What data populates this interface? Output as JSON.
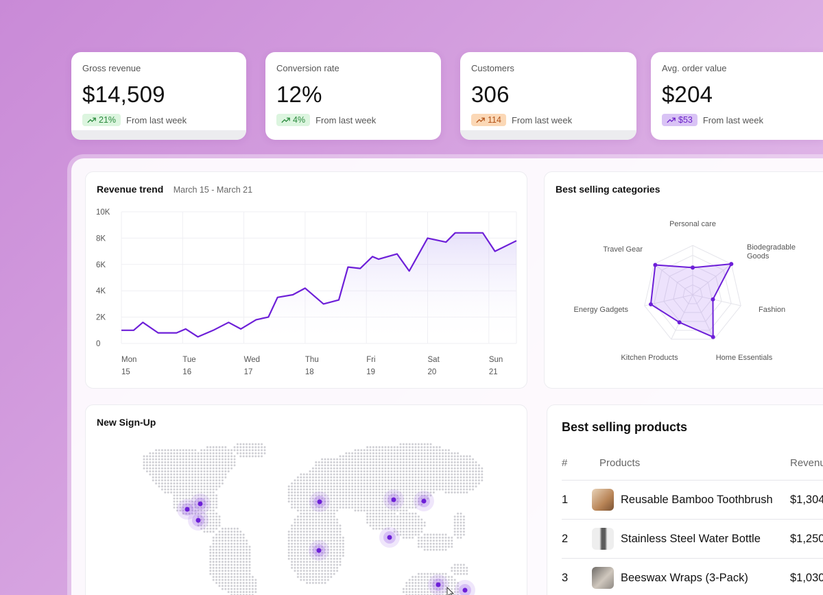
{
  "kpis": [
    {
      "label": "Gross revenue",
      "value": "$14,509",
      "badge": "21%",
      "badge_color": "green",
      "note": "From last week"
    },
    {
      "label": "Conversion rate",
      "value": "12%",
      "badge": "4%",
      "badge_color": "green",
      "note": "From last week"
    },
    {
      "label": "Customers",
      "value": "306",
      "badge": "114",
      "badge_color": "orange",
      "note": "From last week"
    },
    {
      "label": "Avg. order value",
      "value": "$204",
      "badge": "$53",
      "badge_color": "purple",
      "note": "From last week"
    }
  ],
  "revenue": {
    "title": "Revenue trend",
    "range": "March 15 - March 21"
  },
  "categories": {
    "title": "Best selling categories"
  },
  "signup": {
    "title": "New Sign-Up"
  },
  "products": {
    "title": "Best selling products",
    "headers": [
      "#",
      "Products",
      "Revenue"
    ],
    "rows": [
      {
        "rank": "1",
        "name": "Reusable Bamboo Toothbrush",
        "revenue": "$1,304"
      },
      {
        "rank": "2",
        "name": "Stainless Steel Water Bottle",
        "revenue": "$1,250"
      },
      {
        "rank": "3",
        "name": "Beeswax Wraps (3-Pack)",
        "revenue": "$1,030"
      }
    ]
  },
  "chart_data": [
    {
      "type": "line",
      "title": "Revenue trend",
      "xlabel": "",
      "ylabel": "",
      "x_ticks": [
        {
          "day": "Mon",
          "date": "15"
        },
        {
          "day": "Tue",
          "date": "16"
        },
        {
          "day": "Wed",
          "date": "17"
        },
        {
          "day": "Thu",
          "date": "18"
        },
        {
          "day": "Fri",
          "date": "19"
        },
        {
          "day": "Sat",
          "date": "20"
        },
        {
          "day": "Sun",
          "date": "21"
        }
      ],
      "y_ticks": [
        "0",
        "2K",
        "4K",
        "6K",
        "8K",
        "10K"
      ],
      "ylim": [
        0,
        10000
      ],
      "xlim": [
        0,
        6.45
      ],
      "grid": true,
      "accent": "#6d1fd8",
      "x": [
        0,
        0.2,
        0.35,
        0.6,
        0.9,
        1.05,
        1.25,
        1.5,
        1.75,
        1.95,
        2.2,
        2.4,
        2.55,
        2.8,
        3.0,
        3.3,
        3.55,
        3.7,
        3.9,
        4.1,
        4.2,
        4.5,
        4.7,
        5.0,
        5.3,
        5.45,
        5.6,
        5.9,
        6.1,
        6.45
      ],
      "y": [
        1000,
        1000,
        1600,
        800,
        800,
        1100,
        500,
        1000,
        1600,
        1100,
        1800,
        2000,
        3500,
        3700,
        4200,
        3000,
        3300,
        5800,
        5700,
        6600,
        6400,
        6800,
        5500,
        8000,
        7700,
        8400,
        8400,
        8400,
        7000,
        7800
      ]
    },
    {
      "type": "radar",
      "title": "Best selling categories",
      "categories": [
        "Personal care",
        "Biodegradable Goods",
        "Fashion",
        "Home Essentials",
        "Kitchen Products",
        "Energy Gadgets",
        "Travel Gear"
      ],
      "series": [
        {
          "name": "",
          "values": [
            0.55,
            1.0,
            0.42,
            0.95,
            0.62,
            0.87,
            0.97
          ]
        }
      ],
      "accent": "#6d1fd8"
    }
  ]
}
